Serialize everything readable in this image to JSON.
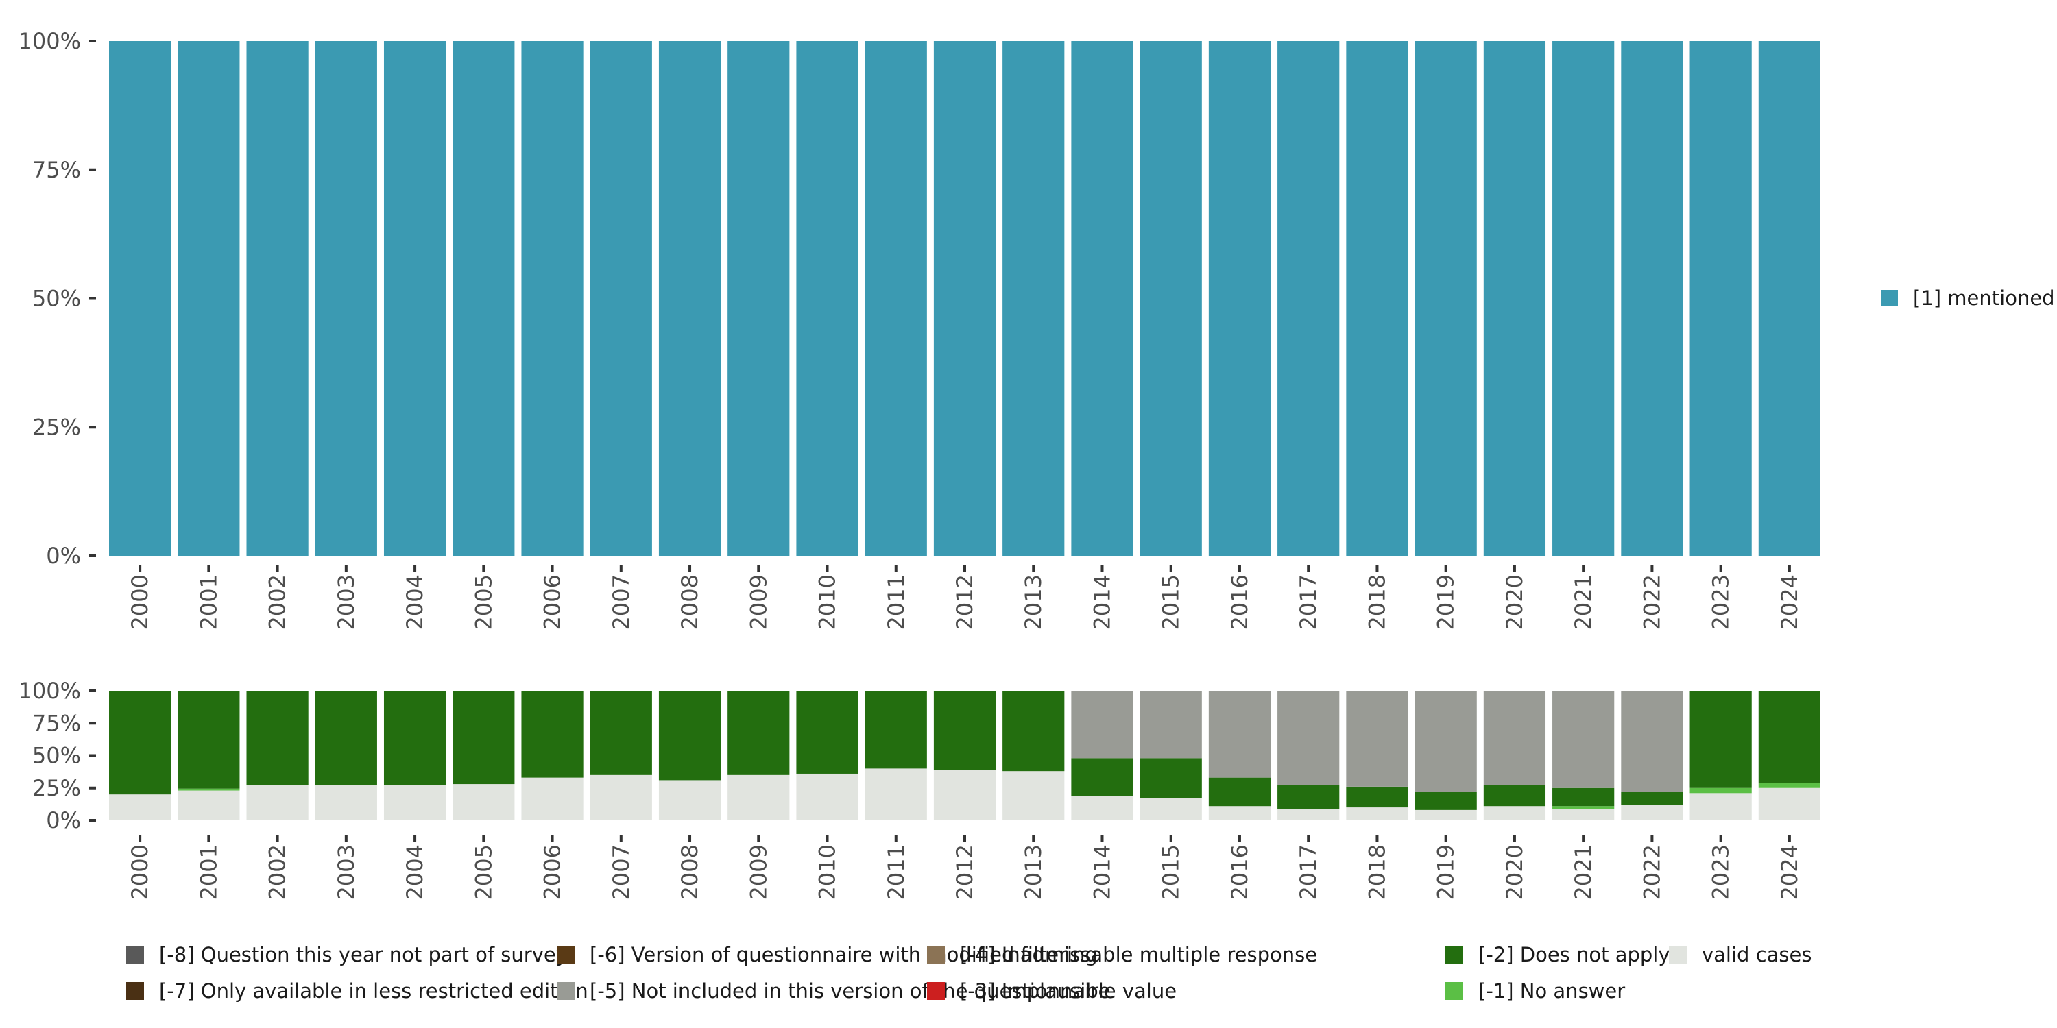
{
  "chart_data": [
    {
      "type": "bar",
      "stacked": true,
      "title": "",
      "xlabel": "",
      "ylabel": "",
      "ylim": [
        0,
        100
      ],
      "y_tick_labels": [
        "0%",
        "25%",
        "50%",
        "75%",
        "100%"
      ],
      "categories": [
        "2000",
        "2001",
        "2002",
        "2003",
        "2004",
        "2005",
        "2006",
        "2007",
        "2008",
        "2009",
        "2010",
        "2011",
        "2012",
        "2013",
        "2014",
        "2015",
        "2016",
        "2017",
        "2018",
        "2019",
        "2020",
        "2021",
        "2022",
        "2023",
        "2024"
      ],
      "series": [
        {
          "name": "[1] mentioned",
          "color": "#3b9ab2",
          "values": [
            100,
            100,
            100,
            100,
            100,
            100,
            100,
            100,
            100,
            100,
            100,
            100,
            100,
            100,
            100,
            100,
            100,
            100,
            100,
            100,
            100,
            100,
            100,
            100,
            100
          ]
        }
      ],
      "legend_position": "right"
    },
    {
      "type": "bar",
      "stacked": true,
      "title": "",
      "xlabel": "",
      "ylabel": "",
      "ylim": [
        0,
        100
      ],
      "y_tick_labels": [
        "0%",
        "25%",
        "50%",
        "75%",
        "100%"
      ],
      "categories": [
        "2000",
        "2001",
        "2002",
        "2003",
        "2004",
        "2005",
        "2006",
        "2007",
        "2008",
        "2009",
        "2010",
        "2011",
        "2012",
        "2013",
        "2014",
        "2015",
        "2016",
        "2017",
        "2018",
        "2019",
        "2020",
        "2021",
        "2022",
        "2023",
        "2024"
      ],
      "series": [
        {
          "name": "valid cases",
          "color": "#e1e4df",
          "values": [
            20,
            23,
            27,
            27,
            27,
            28,
            33,
            35,
            31,
            35,
            36,
            40,
            39,
            38,
            19,
            17,
            11,
            9,
            10,
            8,
            11,
            9,
            12,
            21,
            25
          ]
        },
        {
          "name": "[-1] No answer",
          "color": "#5bbf45",
          "values": [
            0,
            1.5,
            0,
            0,
            0,
            0,
            0,
            0,
            0,
            0,
            0,
            0,
            0,
            0,
            0,
            0,
            0,
            0,
            0,
            0,
            0,
            2,
            0,
            4,
            4
          ]
        },
        {
          "name": "[-2] Does not apply",
          "color": "#236e0f",
          "values": [
            80,
            75.5,
            73,
            73,
            73,
            72,
            67,
            65,
            69,
            65,
            64,
            60,
            61,
            62,
            29,
            31,
            22,
            18,
            16,
            14,
            16,
            14,
            10,
            75,
            71
          ]
        },
        {
          "name": "[-5] Not included in this version of the questionnaire",
          "color": "#999b95",
          "values": [
            0,
            0,
            0,
            0,
            0,
            0,
            0,
            0,
            0,
            0,
            0,
            0,
            0,
            0,
            52,
            52,
            67,
            73,
            74,
            78,
            73,
            75,
            78,
            0,
            0
          ]
        }
      ],
      "legend_position": "bottom",
      "legend_entries": [
        {
          "name": "[-8] Question this year not part of survey",
          "color": "#595959"
        },
        {
          "name": "[-7] Only available in less restricted edition",
          "color": "#4a3014"
        },
        {
          "name": "[-6] Version of questionnaire with modified filtering",
          "color": "#5a3a15"
        },
        {
          "name": "[-5] Not included in this version of the questionnaire",
          "color": "#999b95"
        },
        {
          "name": "[-4] Inadmissable multiple response",
          "color": "#8b7355"
        },
        {
          "name": "[-3] Implausible value",
          "color": "#cc1f1f"
        },
        {
          "name": "[-2] Does not apply",
          "color": "#236e0f"
        },
        {
          "name": "[-1] No answer",
          "color": "#5bbf45"
        },
        {
          "name": "valid cases",
          "color": "#e1e4df"
        }
      ]
    }
  ]
}
